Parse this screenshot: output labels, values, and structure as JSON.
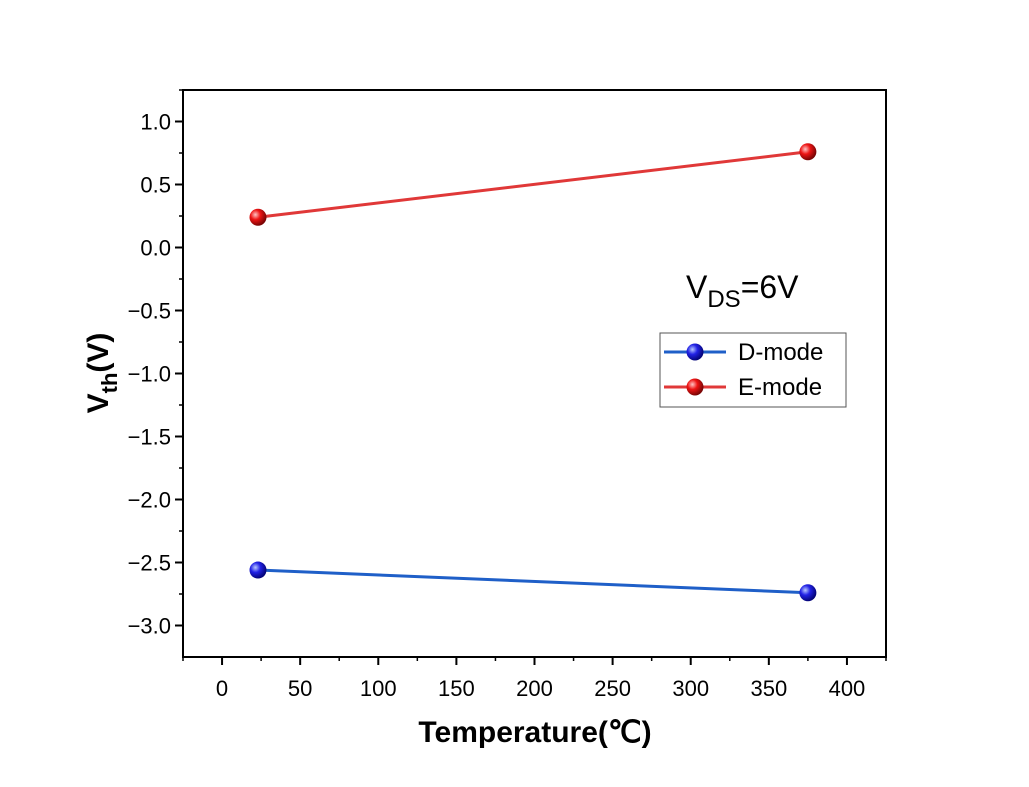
{
  "chart_data": {
    "type": "line",
    "title": "",
    "xlabel": "Temperature(℃)",
    "ylabel_main": "V",
    "ylabel_sub": "th",
    "ylabel_rest": "(V)",
    "xlim": [
      -25,
      425
    ],
    "ylim": [
      -3.25,
      1.25
    ],
    "xticks": [
      0,
      50,
      100,
      150,
      200,
      250,
      300,
      350,
      400
    ],
    "xtick_labels": [
      "0",
      "50",
      "100",
      "150",
      "200",
      "250",
      "300",
      "350",
      "400"
    ],
    "yticks": [
      1.0,
      0.5,
      0.0,
      -0.5,
      -1.0,
      -1.5,
      -2.0,
      -2.5,
      -3.0
    ],
    "ytick_labels": [
      "1.0",
      "0.5",
      "0.0",
      "−0.5",
      "−1.0",
      "−1.5",
      "−2.0",
      "−2.5",
      "−3.0"
    ],
    "series": [
      {
        "name": "D-mode",
        "x": [
          23,
          375
        ],
        "y": [
          -2.56,
          -2.74
        ],
        "color": "#1f5fc8",
        "marker_color": "#1010d0"
      },
      {
        "name": "E-mode",
        "x": [
          23,
          375
        ],
        "y": [
          0.24,
          0.76
        ],
        "color": "#e03838",
        "marker_color": "#e81010"
      }
    ],
    "legend_position": "right",
    "annotation": {
      "main": "V",
      "sub": "DS",
      "rest": "=6V"
    }
  }
}
